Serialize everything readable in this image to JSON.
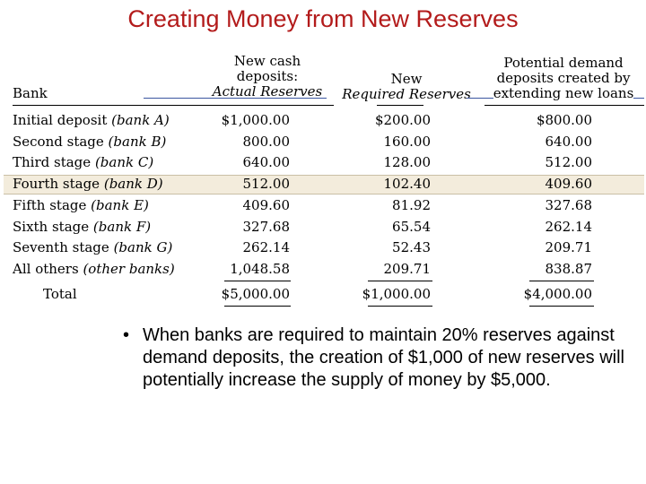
{
  "title": "Creating Money from New Reserves",
  "headers": {
    "bank": "Bank",
    "col1_line1": "New cash",
    "col1_line2": "deposits:",
    "col1_line3": "Actual Reserves",
    "col2_line1": "New",
    "col2_line2": "Required Reserves",
    "col3_line1": "Potential demand",
    "col3_line2": "deposits created by",
    "col3_line3": "extending new loans"
  },
  "rows": [
    {
      "stage": "Initial deposit",
      "bank": "(bank A)",
      "actual": "$1,000.00",
      "required": "$200.00",
      "potential": "$800.00"
    },
    {
      "stage": "Second stage",
      "bank": "(bank B)",
      "actual": "800.00",
      "required": "160.00",
      "potential": "640.00"
    },
    {
      "stage": "Third stage",
      "bank": "(bank C)",
      "actual": "640.00",
      "required": "128.00",
      "potential": "512.00"
    },
    {
      "stage": "Fourth stage",
      "bank": "(bank D)",
      "actual": "512.00",
      "required": "102.40",
      "potential": "409.60"
    },
    {
      "stage": "Fifth stage",
      "bank": "(bank E)",
      "actual": "409.60",
      "required": "81.92",
      "potential": "327.68"
    },
    {
      "stage": "Sixth stage",
      "bank": "(bank F)",
      "actual": "327.68",
      "required": "65.54",
      "potential": "262.14"
    },
    {
      "stage": "Seventh stage",
      "bank": "(bank G)",
      "actual": "262.14",
      "required": "52.43",
      "potential": "209.71"
    },
    {
      "stage": "All others",
      "bank": "(other banks)",
      "actual": "1,048.58",
      "required": "209.71",
      "potential": "838.87"
    }
  ],
  "total": {
    "label": "Total",
    "actual": "$5,000.00",
    "required": "$1,000.00",
    "potential": "$4,000.00"
  },
  "bullet": {
    "symbol": "•",
    "text": "When banks are required to maintain 20% reserves against demand deposits, the creation of $1,000 of new reserves will potentially increase the supply of money by $5,000."
  },
  "colors": {
    "title": "#b31b1b",
    "highlight_row": "#f3ecdc",
    "header_rule": "#3b55a0"
  }
}
